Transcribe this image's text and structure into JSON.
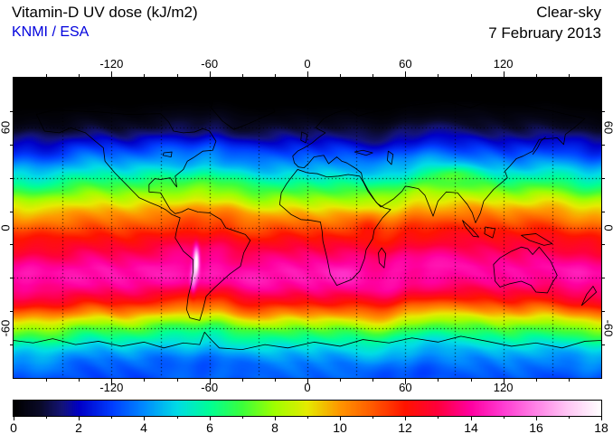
{
  "header": {
    "title": "Vitamin-D UV dose (kJ/m2)",
    "credit": "KNMI / ESA",
    "condition": "Clear-sky",
    "date": "7 February 2013"
  },
  "colors": {
    "credit_text": "#0000dd",
    "axis_text": "#000000",
    "background": "#ffffff",
    "plot_border": "#000000",
    "grid_dots": "#000000"
  },
  "axes": {
    "lon_tick_labels": [
      "-120",
      "-60",
      "0",
      "60",
      "120"
    ],
    "lon_tick_values": [
      -120,
      -60,
      0,
      60,
      120
    ],
    "lat_tick_labels": [
      "60",
      "0",
      "-60"
    ],
    "lat_tick_values": [
      60,
      0,
      -60
    ],
    "lon_range": [
      -180,
      180
    ],
    "lat_range": [
      -90,
      90
    ],
    "grid_step_deg": 30,
    "minor_tick_step_deg": 20
  },
  "colorbar": {
    "min": 0,
    "max": 18,
    "tick_labels": [
      "0",
      "2",
      "4",
      "6",
      "8",
      "10",
      "12",
      "14",
      "16",
      "18"
    ],
    "tick_values": [
      0,
      2,
      4,
      6,
      8,
      10,
      12,
      14,
      16,
      18
    ]
  },
  "chart_data": {
    "type": "heatmap",
    "title": "Vitamin-D UV dose (kJ/m2)",
    "subtitle": "Clear-sky, 7 February 2013, KNMI / ESA",
    "units": "kJ/m2",
    "value_range": [
      0,
      18
    ],
    "projection": "equirectangular",
    "colormap_stops": [
      [
        0,
        "#000000"
      ],
      [
        0.8,
        "#0a0a28"
      ],
      [
        1.5,
        "#14147a"
      ],
      [
        2,
        "#0000c8"
      ],
      [
        3,
        "#003cff"
      ],
      [
        4,
        "#008cff"
      ],
      [
        5,
        "#00dce6"
      ],
      [
        6,
        "#00ff96"
      ],
      [
        7,
        "#3cff3c"
      ],
      [
        8,
        "#a0ff00"
      ],
      [
        9,
        "#e6eb00"
      ],
      [
        10,
        "#ff9600"
      ],
      [
        11,
        "#ff5a00"
      ],
      [
        12,
        "#ff1400"
      ],
      [
        13,
        "#ff003c"
      ],
      [
        14,
        "#ff00a0"
      ],
      [
        15,
        "#ff3cd2"
      ],
      [
        16,
        "#ff82e6"
      ],
      [
        17,
        "#ffc8f5"
      ],
      [
        18,
        "#ffffff"
      ]
    ],
    "zonal_mean_profile": [
      [
        90,
        0
      ],
      [
        75,
        0
      ],
      [
        70,
        0.15
      ],
      [
        65,
        0.4
      ],
      [
        60,
        0.9
      ],
      [
        55,
        1.6
      ],
      [
        50,
        2.4
      ],
      [
        45,
        3.2
      ],
      [
        40,
        4.0
      ],
      [
        35,
        4.8
      ],
      [
        30,
        5.8
      ],
      [
        25,
        6.8
      ],
      [
        20,
        7.8
      ],
      [
        15,
        8.8
      ],
      [
        10,
        9.8
      ],
      [
        5,
        10.6
      ],
      [
        0,
        11.4
      ],
      [
        -5,
        12.1
      ],
      [
        -10,
        12.7
      ],
      [
        -15,
        13.3
      ],
      [
        -20,
        13.8
      ],
      [
        -25,
        14.2
      ],
      [
        -30,
        14.2
      ],
      [
        -35,
        13.8
      ],
      [
        -40,
        13.0
      ],
      [
        -45,
        11.9
      ],
      [
        -50,
        10.4
      ],
      [
        -55,
        8.8
      ],
      [
        -60,
        7.3
      ],
      [
        -65,
        6.2
      ],
      [
        -70,
        5.2
      ],
      [
        -75,
        4.4
      ],
      [
        -80,
        3.8
      ],
      [
        -85,
        3.5
      ],
      [
        -90,
        3.3
      ]
    ],
    "anomalies": [
      {
        "name": "andes-altiplano-max",
        "lon": -68,
        "lat": -20,
        "sigma_lon": 1.2,
        "sigma_lat": 6,
        "amplitude": 4.6
      },
      {
        "name": "southern-andes",
        "lon": -70,
        "lat": -31,
        "sigma_lon": 1.2,
        "sigma_lat": 6,
        "amplitude": 2.2
      },
      {
        "name": "tibetan-plateau",
        "lon": 88,
        "lat": 32,
        "sigma_lon": 9,
        "sigma_lat": 3.5,
        "amplitude": 1.6
      },
      {
        "name": "east-african-highlands",
        "lon": 38,
        "lat": 2,
        "sigma_lon": 5,
        "sigma_lat": 5,
        "amplitude": 0.7
      },
      {
        "name": "southern-africa-plateau",
        "lon": 25,
        "lat": -27,
        "sigma_lon": 6,
        "sigma_lat": 4,
        "amplitude": 0.5
      }
    ]
  }
}
